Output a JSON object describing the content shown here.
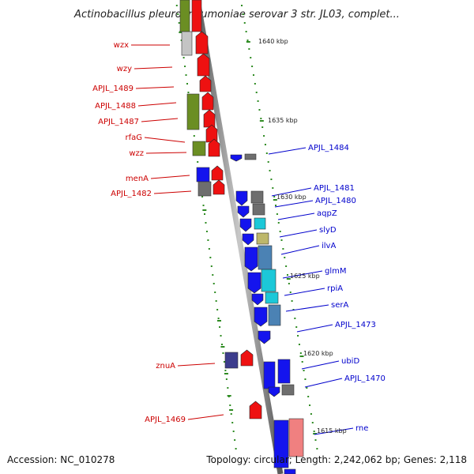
{
  "title": "Actinobacillus pleuropneumoniae serovar 3 str. JL03, complet...",
  "footer": {
    "accession": "Accession: NC_010278",
    "topology": "Topology: circular; Length: 2,242,062 bp; Genes: 2,118"
  },
  "colors": {
    "left_label": "#cc0000",
    "right_label": "#0000cc",
    "scale_tick": "#2e8b22",
    "backbone": "#8a8a8a"
  },
  "scale_labels": [
    "1640 kbp",
    "1635 kbp",
    "1630 kbp",
    "1625 kbp",
    "1620 kbp",
    "1615 kbp"
  ],
  "left_genes": [
    "wzx",
    "wzy",
    "APJL_1489",
    "APJL_1488",
    "APJL_1487",
    "rfaG",
    "wzz",
    "menA",
    "APJL_1482",
    "znuA",
    "APJL_1469"
  ],
  "right_genes": [
    "APJL_1484",
    "APJL_1481",
    "APJL_1480",
    "aqpZ",
    "slyD",
    "ilvA",
    "glmM",
    "rpiA",
    "serA",
    "APJL_1473",
    "ubiD",
    "APJL_1470",
    "rne"
  ]
}
